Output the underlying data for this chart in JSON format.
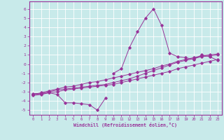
{
  "bg_color": "#c8eaea",
  "grid_color": "#ffffff",
  "line_color": "#993399",
  "xlabel": "Windchill (Refroidissement éolien,°C)",
  "xlim": [
    -0.5,
    23.5
  ],
  "ylim": [
    -5.5,
    6.8
  ],
  "yticks": [
    -5,
    -4,
    -3,
    -2,
    -1,
    0,
    1,
    2,
    3,
    4,
    5,
    6
  ],
  "xticks": [
    0,
    1,
    2,
    3,
    4,
    5,
    6,
    7,
    8,
    9,
    10,
    11,
    12,
    13,
    14,
    15,
    16,
    17,
    18,
    19,
    20,
    21,
    22,
    23
  ],
  "series": [
    [
      null,
      null,
      null,
      null,
      null,
      null,
      null,
      null,
      null,
      null,
      -1.0,
      -0.5,
      1.8,
      3.5,
      5.0,
      6.0,
      4.2,
      1.2,
      0.8,
      0.7,
      0.5,
      1.0,
      0.8,
      0.4
    ],
    [
      -3.2,
      -3.2,
      -3.1,
      -3.3,
      -4.2,
      -4.2,
      -4.3,
      -4.4,
      -5.0,
      -3.7,
      null,
      null,
      null,
      null,
      null,
      null,
      null,
      null,
      null,
      null,
      null,
      null,
      null,
      null
    ],
    [
      -3.3,
      -3.2,
      -3.0,
      -2.8,
      -2.7,
      -2.6,
      -2.5,
      -2.4,
      -2.3,
      -2.2,
      -2.0,
      -1.8,
      -1.6,
      -1.3,
      -1.0,
      -0.7,
      -0.4,
      -0.1,
      0.2,
      0.4,
      0.6,
      0.8,
      0.9,
      1.0
    ],
    [
      -3.3,
      -3.1,
      -2.9,
      -2.7,
      -2.5,
      -2.4,
      -2.2,
      -2.0,
      -1.9,
      -1.7,
      -1.5,
      -1.3,
      -1.1,
      -0.9,
      -0.7,
      -0.5,
      -0.2,
      0.0,
      0.3,
      0.5,
      0.7,
      0.9,
      1.0,
      1.1
    ],
    [
      -3.4,
      -3.3,
      -3.1,
      -3.0,
      -2.8,
      -2.7,
      -2.6,
      -2.5,
      -2.4,
      -2.3,
      -2.2,
      -2.0,
      -1.8,
      -1.6,
      -1.4,
      -1.2,
      -1.0,
      -0.8,
      -0.5,
      -0.3,
      -0.1,
      0.1,
      0.3,
      0.5
    ]
  ]
}
